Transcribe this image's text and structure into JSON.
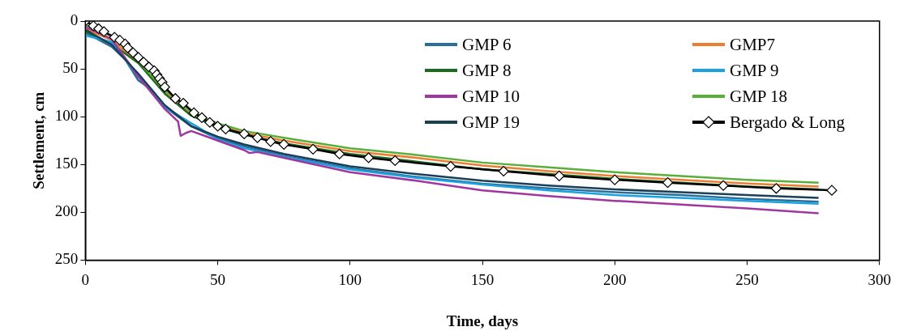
{
  "chart_data": {
    "type": "line",
    "xlabel": "Time, days",
    "ylabel": "Settlement, cm",
    "xlim": [
      0,
      300
    ],
    "xticks": [
      0,
      50,
      100,
      150,
      200,
      250,
      300
    ],
    "ylim": [
      250,
      0
    ],
    "yticks": [
      0,
      50,
      100,
      150,
      200,
      250
    ],
    "grid": false,
    "legend": "top right",
    "line_style": "solid",
    "marker": "none",
    "series": [
      {
        "name": "GMP 6",
        "color": "#2a6f99",
        "x": [
          0,
          10,
          15,
          20,
          25,
          30,
          40,
          50,
          60,
          75,
          100,
          125,
          150,
          175,
          200,
          225,
          250,
          277
        ],
        "values": [
          12,
          27,
          40,
          62,
          72,
          90,
          110,
          123,
          131,
          141,
          154,
          163,
          170,
          175,
          179,
          182,
          186,
          189
        ]
      },
      {
        "name": "GMP7",
        "color": "#ed7d31",
        "x": [
          0,
          10,
          20,
          30,
          40,
          50,
          60,
          75,
          100,
          125,
          150,
          175,
          200,
          225,
          250,
          277
        ],
        "values": [
          8,
          20,
          43,
          74,
          97,
          109,
          117,
          125,
          136,
          143,
          151,
          157,
          162,
          166,
          170,
          173
        ]
      },
      {
        "name": "GMP 8",
        "color": "#1d6b22",
        "x": [
          0,
          10,
          20,
          30,
          40,
          50,
          60,
          75,
          100,
          125,
          150,
          175,
          200,
          225,
          250,
          277
        ],
        "values": [
          11,
          24,
          44,
          76,
          99,
          111,
          119,
          128,
          139,
          147,
          155,
          160,
          165,
          169,
          173,
          176
        ]
      },
      {
        "name": "GMP 9",
        "color": "#1ba1e2",
        "x": [
          0,
          10,
          20,
          30,
          40,
          42,
          50,
          60,
          75,
          100,
          125,
          150,
          175,
          200,
          225,
          250,
          277
        ],
        "values": [
          15,
          22,
          58,
          90,
          107,
          110,
          124,
          133,
          142,
          155,
          164,
          171,
          177,
          182,
          185,
          188,
          191
        ]
      },
      {
        "name": "GMP 10",
        "color": "#a0369f",
        "x": [
          0,
          10,
          20,
          30,
          35,
          36,
          38,
          40,
          50,
          60,
          62,
          65,
          75,
          100,
          125,
          140,
          150,
          175,
          200,
          225,
          250,
          277
        ],
        "values": [
          6,
          19,
          58,
          92,
          105,
          120,
          117,
          115,
          125,
          135,
          138,
          137,
          143,
          158,
          167,
          173,
          177,
          183,
          188,
          192,
          196,
          201
        ]
      },
      {
        "name": "GMP 18",
        "color": "#5aae3a",
        "x": [
          0,
          10,
          20,
          30,
          40,
          50,
          60,
          75,
          100,
          125,
          150,
          175,
          200,
          225,
          250,
          277
        ],
        "values": [
          4,
          16,
          42,
          72,
          95,
          107,
          115,
          122,
          133,
          140,
          148,
          153,
          158,
          162,
          166,
          169
        ]
      },
      {
        "name": "GMP 19",
        "color": "#1b3f56",
        "x": [
          0,
          10,
          20,
          30,
          40,
          50,
          60,
          75,
          100,
          125,
          150,
          175,
          200,
          225,
          250,
          277
        ],
        "values": [
          9,
          25,
          55,
          88,
          110,
          121,
          129,
          139,
          152,
          160,
          167,
          172,
          176,
          179,
          182,
          185
        ]
      },
      {
        "name": "Bergado & Long",
        "color": "#000000",
        "marker": "diamond",
        "x": [
          0,
          3,
          5,
          7,
          11,
          13,
          15,
          16,
          18,
          20,
          22,
          24,
          26,
          27,
          28,
          29,
          30,
          34,
          37,
          41,
          44,
          47,
          50,
          53,
          60,
          65,
          70,
          75,
          86,
          96,
          107,
          117,
          138,
          158,
          179,
          200,
          220,
          241,
          261,
          282
        ],
        "values": [
          0,
          5,
          8,
          11,
          17,
          20,
          24,
          28,
          33,
          38,
          43,
          48,
          52,
          56,
          60,
          64,
          69,
          81,
          86,
          96,
          101,
          106,
          110,
          113,
          118,
          122,
          126,
          129,
          134,
          139,
          143,
          146,
          152,
          157,
          162,
          166,
          169,
          172,
          175,
          177
        ]
      }
    ]
  }
}
